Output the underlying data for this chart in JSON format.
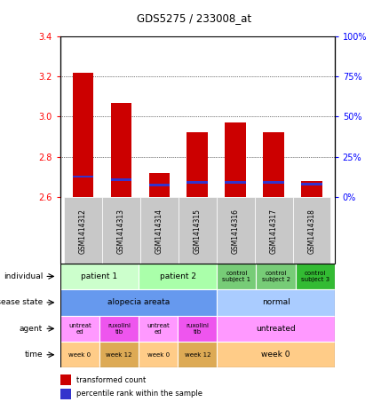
{
  "title": "GDS5275 / 233008_at",
  "samples": [
    "GSM1414312",
    "GSM1414313",
    "GSM1414314",
    "GSM1414315",
    "GSM1414316",
    "GSM1414317",
    "GSM1414318"
  ],
  "transformed_count": [
    3.22,
    3.07,
    2.72,
    2.92,
    2.97,
    2.92,
    2.68
  ],
  "baseline": 2.6,
  "percentile_marker_y": [
    2.695,
    2.68,
    2.655,
    2.665,
    2.668,
    2.668,
    2.658
  ],
  "ylim": [
    2.6,
    3.4
  ],
  "yticks_left": [
    2.6,
    2.8,
    3.0,
    3.2,
    3.4
  ],
  "yticks_right": [
    0,
    25,
    50,
    75,
    100
  ],
  "right_ylim": [
    0,
    100
  ],
  "bar_color": "#cc0000",
  "percentile_color": "#3333cc",
  "sample_label_bg": "#c8c8c8",
  "rows": [
    {
      "label": "individual",
      "cells": [
        {
          "text": "patient 1",
          "colspan": 2,
          "bg": "#ccffcc",
          "fontsize": 6.5
        },
        {
          "text": "patient 2",
          "colspan": 2,
          "bg": "#aaffaa",
          "fontsize": 6.5
        },
        {
          "text": "control\nsubject 1",
          "colspan": 1,
          "bg": "#77cc77",
          "fontsize": 5.0
        },
        {
          "text": "control\nsubject 2",
          "colspan": 1,
          "bg": "#77cc77",
          "fontsize": 5.0
        },
        {
          "text": "control\nsubject 3",
          "colspan": 1,
          "bg": "#33bb33",
          "fontsize": 5.0
        }
      ]
    },
    {
      "label": "disease state",
      "cells": [
        {
          "text": "alopecia areata",
          "colspan": 4,
          "bg": "#6699ee",
          "fontsize": 6.5
        },
        {
          "text": "normal",
          "colspan": 3,
          "bg": "#aaccff",
          "fontsize": 6.5
        }
      ]
    },
    {
      "label": "agent",
      "cells": [
        {
          "text": "untreat\ned",
          "colspan": 1,
          "bg": "#ff99ff",
          "fontsize": 5.0
        },
        {
          "text": "ruxolini\ntib",
          "colspan": 1,
          "bg": "#ee55ee",
          "fontsize": 5.0
        },
        {
          "text": "untreat\ned",
          "colspan": 1,
          "bg": "#ff99ff",
          "fontsize": 5.0
        },
        {
          "text": "ruxolini\ntib",
          "colspan": 1,
          "bg": "#ee55ee",
          "fontsize": 5.0
        },
        {
          "text": "untreated",
          "colspan": 3,
          "bg": "#ff99ff",
          "fontsize": 6.5
        }
      ]
    },
    {
      "label": "time",
      "cells": [
        {
          "text": "week 0",
          "colspan": 1,
          "bg": "#ffcc88",
          "fontsize": 5.0
        },
        {
          "text": "week 12",
          "colspan": 1,
          "bg": "#ddaa55",
          "fontsize": 5.0
        },
        {
          "text": "week 0",
          "colspan": 1,
          "bg": "#ffcc88",
          "fontsize": 5.0
        },
        {
          "text": "week 12",
          "colspan": 1,
          "bg": "#ddaa55",
          "fontsize": 5.0
        },
        {
          "text": "week 0",
          "colspan": 3,
          "bg": "#ffcc88",
          "fontsize": 6.5
        }
      ]
    }
  ]
}
